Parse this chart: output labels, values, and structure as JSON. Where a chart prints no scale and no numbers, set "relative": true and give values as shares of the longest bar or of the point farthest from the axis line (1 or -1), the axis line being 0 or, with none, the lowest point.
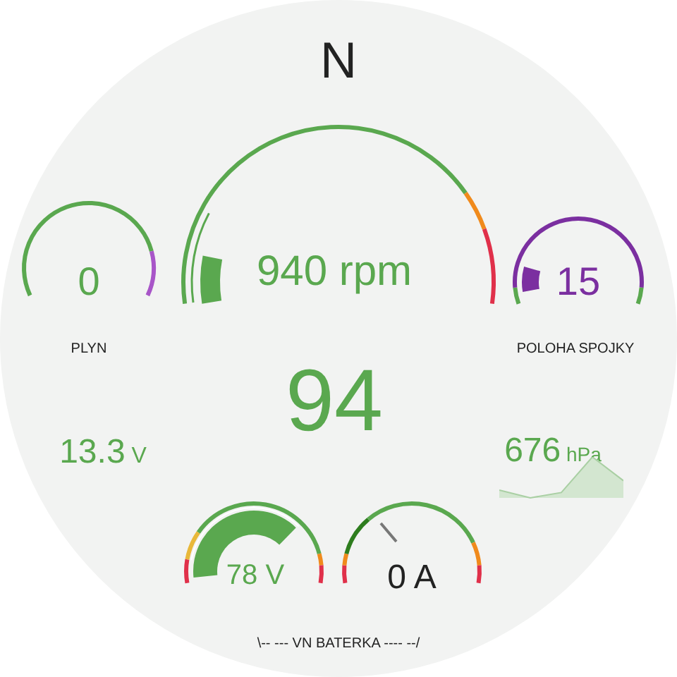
{
  "chart_data": [
    {
      "type": "other",
      "title": "N",
      "annotations": [
        "0",
        "940 rpm",
        "15",
        "94",
        "13.3 V",
        "676 hPa",
        "78 V",
        "0 A",
        "PLYN",
        "POLOHA SPOJKY",
        "\\-- --- VN BATERKA ---- --/"
      ]
    },
    {
      "type": "area",
      "relative": true,
      "categories": [
        null,
        null,
        null,
        null,
        null
      ],
      "values": [
        0.19,
        0,
        0.13,
        1,
        0.42
      ],
      "color": "#d3e6d0"
    }
  ]
}
